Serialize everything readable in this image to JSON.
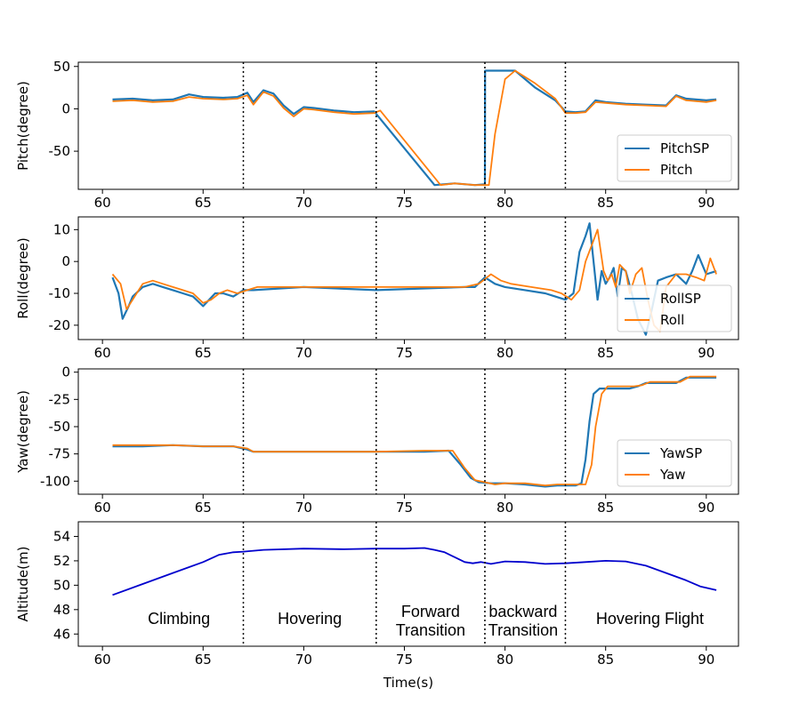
{
  "chart_data": {
    "type": "line",
    "xlabel": "Time(s)",
    "xlim": [
      58.8,
      91.6
    ],
    "xticks": [
      60,
      65,
      70,
      75,
      80,
      85,
      90
    ],
    "phase_boundaries": [
      67,
      73.6,
      79,
      83
    ],
    "colors": {
      "setpoint": "#1f77b4",
      "actual": "#ff7f0e",
      "altitude": "#0000cd",
      "divider": "#000000"
    },
    "panels": [
      {
        "id": "pitch",
        "ylabel": "Pitch(degree)",
        "ylim": [
          -95,
          55
        ],
        "yticks": [
          50,
          0,
          -50
        ],
        "legend": "lower-right",
        "series": [
          {
            "name": "PitchSP",
            "x": [
              60.5,
              61.5,
              62.5,
              63.5,
              64.3,
              65,
              66,
              66.7,
              67.2,
              67.5,
              68,
              68.5,
              69,
              69.5,
              70,
              70.5,
              71.5,
              72.5,
              73.5,
              76.5,
              77.5,
              78.5,
              79,
              79.01,
              80.5,
              81.5,
              82.5,
              83,
              83.5,
              84,
              84.5,
              85,
              86,
              87,
              88,
              88.5,
              89,
              90,
              90.5
            ],
            "y": [
              11,
              12,
              10,
              11,
              17,
              14,
              13,
              14,
              19,
              8,
              22,
              18,
              4,
              -6,
              2,
              1,
              -2,
              -4,
              -3,
              -90,
              -88,
              -90,
              -89,
              45,
              45,
              25,
              10,
              -3,
              -4,
              -3,
              10,
              8,
              6,
              5,
              4,
              16,
              12,
              10,
              11
            ]
          },
          {
            "name": "Pitch",
            "x": [
              60.5,
              61.5,
              62.5,
              63.5,
              64.3,
              65,
              66,
              66.7,
              67.2,
              67.5,
              68,
              68.5,
              69,
              69.5,
              70,
              70.5,
              71.5,
              72.5,
              73.5,
              73.8,
              76.8,
              77.5,
              78.5,
              79.2,
              79.5,
              80,
              80.5,
              81.5,
              82.5,
              83,
              83.5,
              84,
              84.5,
              85,
              86,
              87,
              88,
              88.5,
              89,
              90,
              90.5
            ],
            "y": [
              9,
              10,
              8,
              9,
              14,
              12,
              11,
              12,
              16,
              5,
              20,
              15,
              1,
              -9,
              0,
              -1,
              -4,
              -6,
              -5,
              -2,
              -90,
              -88,
              -90,
              -90,
              -30,
              35,
              45,
              30,
              12,
              -5,
              -5,
              -4,
              8,
              7,
              5,
              4,
              3,
              15,
              10,
              8,
              10
            ]
          }
        ]
      },
      {
        "id": "roll",
        "ylabel": "Roll(degree)",
        "ylim": [
          -24.5,
          14
        ],
        "yticks": [
          10,
          0,
          -10,
          -20
        ],
        "legend": "lower-right",
        "series": [
          {
            "name": "RollSP",
            "x": [
              60.5,
              60.8,
              61,
              61.3,
              61.5,
              62,
              62.5,
              63,
              63.5,
              64,
              64.5,
              65,
              65.3,
              65.6,
              66,
              66.5,
              67,
              67.5,
              70,
              73.6,
              78,
              78.5,
              79,
              79.5,
              80,
              81,
              82,
              82.5,
              83,
              83.4,
              83.7,
              84,
              84.2,
              84.4,
              84.6,
              84.8,
              85,
              85.2,
              85.4,
              85.6,
              85.8,
              86,
              86.3,
              86.6,
              87,
              87.3,
              87.6,
              88,
              88.5,
              89,
              89.3,
              89.6,
              90,
              90.5
            ],
            "y": [
              -5,
              -10,
              -18,
              -14,
              -11,
              -8,
              -7,
              -8,
              -9,
              -10,
              -11,
              -14,
              -12,
              -10,
              -10,
              -11,
              -9,
              -9,
              -8,
              -9,
              -8,
              -8,
              -5,
              -7,
              -8,
              -9,
              -10,
              -11,
              -12,
              -10,
              3,
              8,
              12,
              0,
              -12,
              -3,
              -7,
              -5,
              -2,
              -11,
              -2,
              -3,
              -10,
              -18,
              -23,
              -15,
              -6,
              -5,
              -4,
              -7,
              -3,
              2,
              -4,
              -3
            ]
          },
          {
            "name": "Roll",
            "x": [
              60.5,
              60.9,
              61.2,
              61.5,
              61.8,
              62,
              62.5,
              63,
              63.5,
              64,
              64.5,
              65,
              65.4,
              65.8,
              66.2,
              66.7,
              67.2,
              67.7,
              70,
              73.6,
              78,
              78.7,
              79.3,
              79.8,
              80.3,
              81.3,
              82.3,
              82.8,
              83.3,
              83.7,
              84,
              84.3,
              84.6,
              84.9,
              85.1,
              85.3,
              85.5,
              85.7,
              86,
              86.2,
              86.5,
              86.8,
              87.1,
              87.4,
              87.7,
              88,
              88.5,
              89,
              89.5,
              89.9,
              90.2,
              90.5
            ],
            "y": [
              -4,
              -7,
              -15,
              -12,
              -9,
              -7,
              -6,
              -7,
              -8,
              -9,
              -10,
              -13,
              -12,
              -10,
              -9,
              -10,
              -9,
              -8,
              -8,
              -8,
              -8,
              -7,
              -4,
              -6,
              -7,
              -8,
              -9,
              -10,
              -12,
              -9,
              0,
              5,
              10,
              -3,
              -6,
              -4,
              -8,
              -1,
              -3,
              -10,
              -4,
              -2,
              -12,
              -20,
              -22,
              -8,
              -4,
              -4,
              -5,
              -6,
              1,
              -4
            ]
          }
        ]
      },
      {
        "id": "yaw",
        "ylabel": "Yaw(degree)",
        "ylim": [
          -112,
          3
        ],
        "yticks": [
          0,
          -25,
          -50,
          -75,
          -100
        ],
        "legend": "lower-right",
        "series": [
          {
            "name": "YawSP",
            "x": [
              60.5,
              62,
              63.5,
              65,
              66.5,
              67.2,
              67.5,
              70,
              73.6,
              76,
              77.2,
              77.8,
              78.3,
              78.7,
              79.3,
              80,
              81,
              82,
              82.6,
              83,
              83.5,
              83.8,
              84,
              84.2,
              84.4,
              84.7,
              85,
              86.2,
              86.6,
              87,
              88,
              88.5,
              89,
              90,
              90.5
            ],
            "y": [
              -68,
              -68,
              -67,
              -68,
              -68,
              -71,
              -73,
              -73,
              -73,
              -73,
              -72,
              -85,
              -97,
              -101,
              -102,
              -102,
              -103,
              -105,
              -104,
              -104,
              -104,
              -102,
              -80,
              -45,
              -20,
              -15,
              -15,
              -15,
              -13,
              -10,
              -10,
              -10,
              -5,
              -5,
              -5
            ]
          },
          {
            "name": "Yaw",
            "x": [
              60.5,
              62,
              63.5,
              65,
              66.5,
              67.2,
              67.5,
              70,
              73.6,
              76,
              77.4,
              78,
              78.5,
              79,
              79.5,
              80,
              81,
              82,
              82.6,
              83,
              83.5,
              84,
              84.3,
              84.5,
              84.8,
              85.1,
              86.4,
              86.8,
              87.2,
              88.2,
              88.7,
              89.2,
              90,
              90.5
            ],
            "y": [
              -67,
              -67,
              -67,
              -68,
              -68,
              -70,
              -73,
              -73,
              -73,
              -72,
              -72,
              -88,
              -99,
              -101,
              -103,
              -102,
              -102,
              -104,
              -103,
              -103,
              -103,
              -103,
              -85,
              -50,
              -20,
              -13,
              -13,
              -12,
              -9,
              -9,
              -9,
              -4,
              -4,
              -4
            ]
          }
        ]
      },
      {
        "id": "altitude",
        "ylabel": "Altitude(m)",
        "ylim": [
          45,
          55.2
        ],
        "yticks": [
          54,
          52,
          50,
          48,
          46
        ],
        "series": [
          {
            "name": "Altitude",
            "x": [
              60.5,
              62,
              63.5,
              65,
              65.8,
              66.5,
              67,
              68,
              70,
              72,
              73.6,
              75,
              76,
              76.5,
              77,
              77.5,
              78,
              78.4,
              78.8,
              79.3,
              80,
              81,
              82,
              83,
              84,
              85,
              86,
              87,
              88,
              89,
              89.7,
              90.5
            ],
            "y": [
              49.2,
              50.1,
              51,
              51.9,
              52.5,
              52.7,
              52.75,
              52.9,
              53,
              52.95,
              53,
              53,
              53.05,
              52.9,
              52.7,
              52.3,
              51.9,
              51.8,
              51.9,
              51.75,
              51.95,
              51.9,
              51.75,
              51.8,
              51.9,
              52,
              51.95,
              51.6,
              51,
              50.4,
              49.9,
              49.6
            ]
          }
        ]
      }
    ],
    "phases": [
      {
        "line1": "Climbing",
        "line2": "",
        "x_center": 63.8
      },
      {
        "line1": "Hovering",
        "line2": "",
        "x_center": 70.3
      },
      {
        "line1": "Forward",
        "line2": "Transition",
        "x_center": 76.3
      },
      {
        "line1": "backward",
        "line2": "Transition",
        "x_center": 80.9
      },
      {
        "line1": "Hovering Flight",
        "line2": "",
        "x_center": 87.2
      }
    ]
  }
}
